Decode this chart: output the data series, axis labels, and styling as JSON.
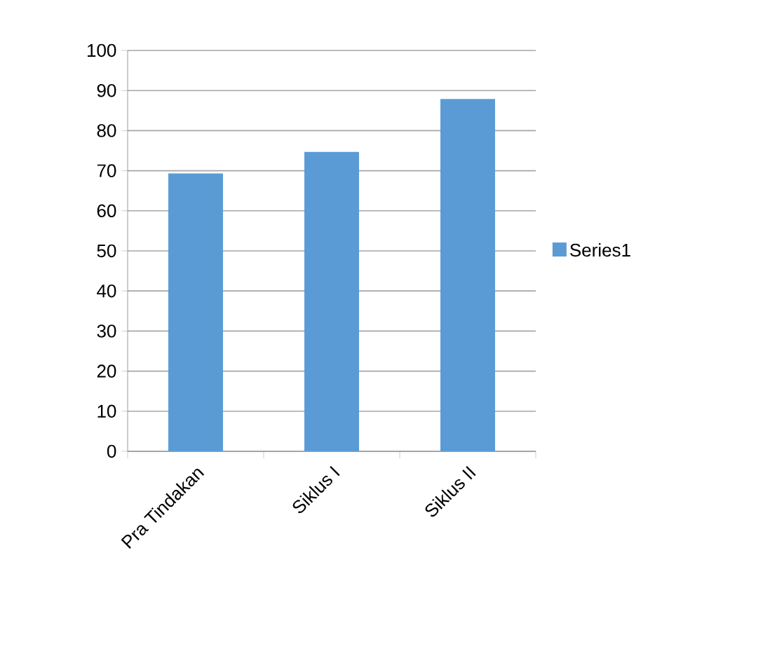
{
  "chart_data": {
    "type": "bar",
    "categories": [
      "Pra Tindakan",
      "Siklus I",
      "Siklus II"
    ],
    "series": [
      {
        "name": "Series1",
        "color": "#5b9bd5",
        "values": [
          69.3,
          74.7,
          87.9
        ]
      }
    ],
    "ylim": [
      0,
      100
    ],
    "yticks": [
      0,
      10,
      20,
      30,
      40,
      50,
      60,
      70,
      80,
      90,
      100
    ],
    "grid": "y",
    "legend": "right"
  }
}
